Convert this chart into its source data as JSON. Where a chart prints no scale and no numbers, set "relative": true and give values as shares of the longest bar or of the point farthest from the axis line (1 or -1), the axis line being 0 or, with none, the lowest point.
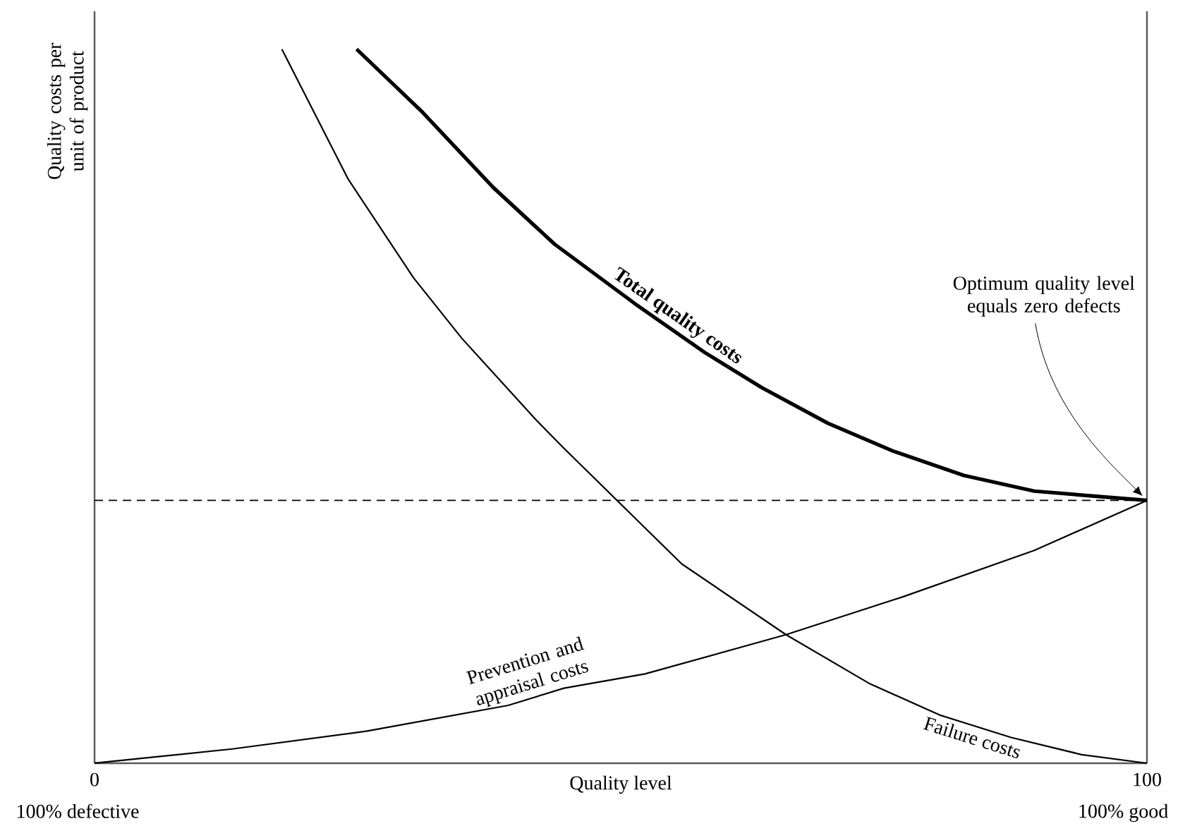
{
  "chart_data": {
    "type": "line",
    "relative": true,
    "xlabel": "Quality level",
    "ylabel": "Quality costs per unit of product",
    "xlim": [
      0,
      100
    ],
    "xticks": [
      0,
      100
    ],
    "tick_labels": "x",
    "series": [
      {
        "name": "Total quality costs",
        "color": "#000000",
        "line_style": "solid",
        "x": [
          24.9,
          31.2,
          37.9,
          43.7,
          51.3,
          58.0,
          63.4,
          69.7,
          75.9,
          82.6,
          89.3,
          100
        ],
        "values": [
          1.0,
          0.911,
          0.806,
          0.727,
          0.644,
          0.575,
          0.526,
          0.476,
          0.437,
          0.403,
          0.381,
          0.368
        ]
      },
      {
        "name": "Prevention and appraisal costs",
        "color": "#000000",
        "line_style": "solid",
        "x": [
          0,
          13.1,
          25.9,
          39.3,
          44.6,
          52.3,
          65.7,
          76.8,
          89.3,
          100
        ],
        "values": [
          0,
          0.02,
          0.045,
          0.081,
          0.105,
          0.125,
          0.18,
          0.233,
          0.298,
          0.368
        ]
      },
      {
        "name": "Failure costs",
        "color": "#000000",
        "line_style": "solid",
        "x": [
          17.8,
          24.1,
          30.3,
          34.9,
          42.0,
          44.6,
          55.8,
          65.7,
          73.7,
          80.4,
          87.1,
          93.8,
          100
        ],
        "values": [
          1.0,
          0.818,
          0.68,
          0.595,
          0.48,
          0.441,
          0.279,
          0.18,
          0.111,
          0.067,
          0.036,
          0.012,
          0
        ]
      }
    ],
    "ref_lines": [
      {
        "axis": "y",
        "value": 0.368,
        "color": "#000000",
        "line_style": "dashed"
      }
    ],
    "annotations": [
      "Optimum quality level equals zero defects",
      "100% defective",
      "100% good"
    ]
  }
}
